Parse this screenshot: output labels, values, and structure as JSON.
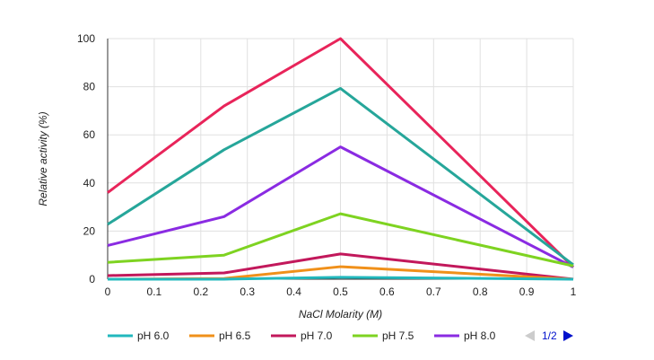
{
  "chart_data": {
    "type": "line",
    "title": "",
    "xlabel": "NaCl Molarity (M)",
    "ylabel": "Relative activity (%)",
    "xlim": [
      0,
      1
    ],
    "ylim": [
      0,
      100
    ],
    "x_ticks": [
      "0",
      "0.1",
      "0.2",
      "0.3",
      "0.4",
      "0.5",
      "0.6",
      "0.7",
      "0.8",
      "0.9",
      "1"
    ],
    "y_ticks": [
      "0",
      "20",
      "40",
      "60",
      "80",
      "100"
    ],
    "grid": true,
    "legend_position": "bottom",
    "x": [
      0,
      0.25,
      0.5,
      1
    ],
    "series": [
      {
        "name": "pH 6.0",
        "color": "#22b8bd",
        "values": [
          0,
          0,
          0.8,
          0
        ]
      },
      {
        "name": "pH 6.5",
        "color": "#f0901a",
        "values": [
          0,
          0.3,
          5.2,
          0
        ]
      },
      {
        "name": "pH 7.0",
        "color": "#c2185b",
        "values": [
          1.5,
          2.6,
          10.5,
          0
        ]
      },
      {
        "name": "pH 7.5",
        "color": "#7ed321",
        "values": [
          7,
          10,
          27.2,
          5.5
        ]
      },
      {
        "name": "pH 8.0",
        "color": "#8a2be2",
        "values": [
          14,
          26,
          55,
          5
        ]
      },
      {
        "name": "",
        "color": "#26a69a",
        "values": [
          22.8,
          53.8,
          79.3,
          6
        ]
      },
      {
        "name": "",
        "color": "#e8245a",
        "values": [
          36,
          72,
          100,
          5
        ]
      }
    ],
    "pager": "1/2"
  }
}
